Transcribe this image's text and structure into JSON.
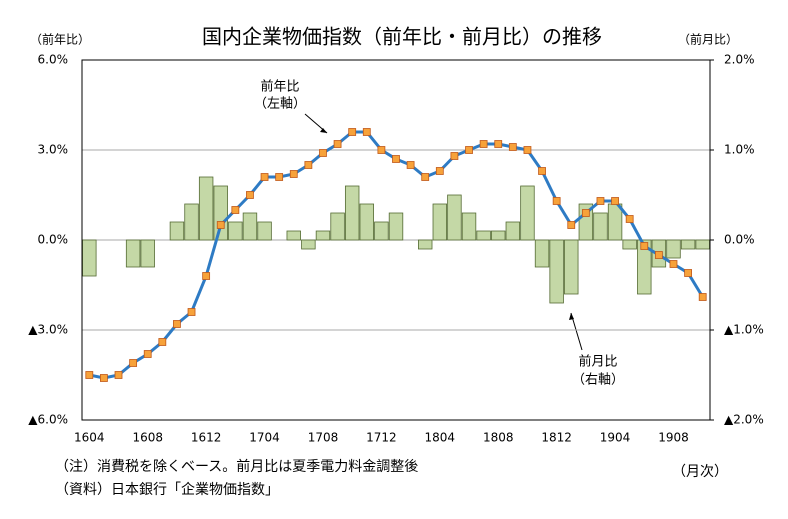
{
  "chart_data": {
    "type": "bar-line",
    "title": "国内企業物価指数（前年比・前月比）の推移",
    "y_label": "（前年比）",
    "y2_label": "（前月比）",
    "x_label": "（月次）",
    "notes": [
      "（注）消費税を除くベース。前月比は夏季電力料金調整後",
      "（資料）日本銀行「企業物価指数」"
    ],
    "categories": [
      "1604",
      null,
      null,
      null,
      "1608",
      null,
      null,
      null,
      "1612",
      null,
      null,
      null,
      "1704",
      null,
      null,
      null,
      "1708",
      null,
      null,
      null,
      "1712",
      null,
      null,
      null,
      "1804",
      null,
      null,
      null,
      "1808",
      null,
      null,
      null,
      "1812",
      null,
      null,
      null,
      "1904",
      null,
      null,
      null,
      "1908",
      null,
      null
    ],
    "ylim": [
      -6,
      6
    ],
    "yticks": [
      {
        "value": 6,
        "label": "6.0%"
      },
      {
        "value": 3,
        "label": "3.0%"
      },
      {
        "value": 0,
        "label": "0.0%"
      },
      {
        "value": -3,
        "label": "▲3.0%"
      },
      {
        "value": -6,
        "label": "▲6.0%"
      }
    ],
    "y2lim": [
      -2,
      2
    ],
    "y2ticks": [
      {
        "value": 2,
        "label": "2.0%"
      },
      {
        "value": 1,
        "label": "1.0%"
      },
      {
        "value": 0,
        "label": "0.0%"
      },
      {
        "value": -1,
        "label": "▲1.0%"
      },
      {
        "value": -2,
        "label": "▲2.0%"
      }
    ],
    "grid": true,
    "series": [
      {
        "name": "前年比",
        "axis_note": "（左軸）",
        "type": "line",
        "axis": "y",
        "color": "#2e7bc4",
        "marker_color": "#f7a23a",
        "values": [
          -4.5,
          -4.6,
          -4.5,
          -4.1,
          -3.8,
          -3.4,
          -2.8,
          -2.4,
          -1.2,
          0.5,
          1.0,
          1.5,
          2.1,
          2.1,
          2.2,
          2.5,
          2.9,
          3.2,
          3.6,
          3.6,
          3.0,
          2.7,
          2.5,
          2.1,
          2.3,
          2.8,
          3.0,
          3.2,
          3.2,
          3.1,
          3.0,
          2.3,
          1.3,
          0.5,
          0.9,
          1.3,
          1.3,
          0.7,
          -0.2,
          -0.5,
          -0.8,
          -1.1,
          -1.9
        ]
      },
      {
        "name": "前月比",
        "axis_note": "（右軸）",
        "type": "bar",
        "axis": "y2",
        "color": "#c4d8a6",
        "values": [
          -0.4,
          0,
          0,
          -0.3,
          -0.3,
          0,
          0.2,
          0.4,
          0.7,
          0.6,
          0.2,
          0.3,
          0.2,
          0,
          0.1,
          -0.1,
          0.1,
          0.3,
          0.6,
          0.4,
          0.2,
          0.3,
          0,
          -0.1,
          0.4,
          0.5,
          0.3,
          0.1,
          0.1,
          0.2,
          0.6,
          -0.3,
          -0.7,
          -0.6,
          0.4,
          0.3,
          0.4,
          -0.1,
          -0.6,
          -0.3,
          -0.2,
          -0.1,
          -0.1
        ]
      }
    ]
  }
}
